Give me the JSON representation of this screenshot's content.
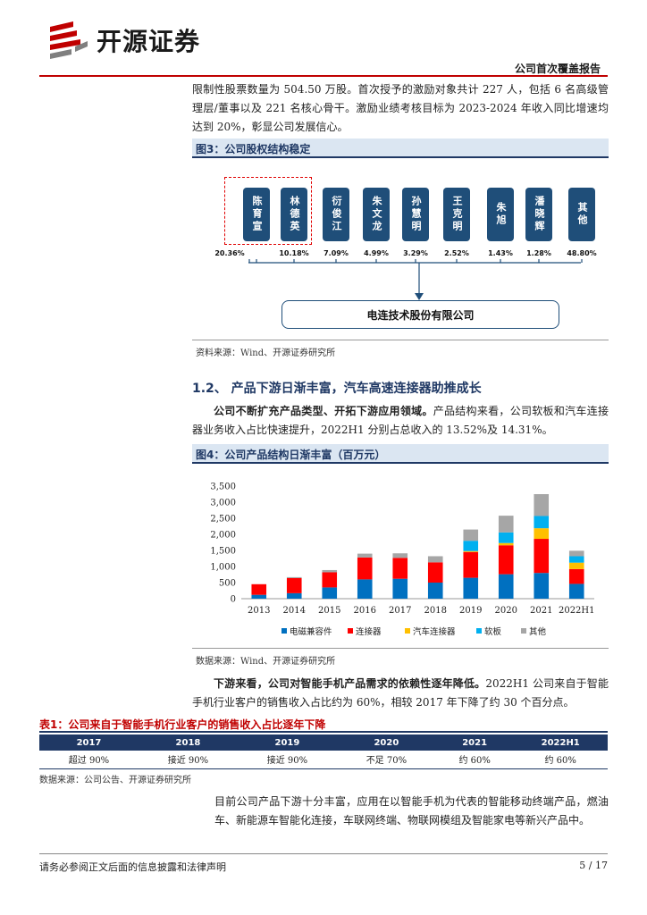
{
  "header": {
    "brand": "开源证券",
    "report_type": "公司首次覆盖报告",
    "colors": {
      "brand_red": "#c00000",
      "navy": "#1f3864"
    }
  },
  "paragraph1": "限制性股票数量为 504.50 万股。首次授予的激励对象共计 227 人，包括 6 名高级管理层/董事以及 221 名核心骨干。激励业绩考核目标为 2023-2024 年收入同比增速均达到 20%，彰显公司发展信心。",
  "figure3": {
    "title": "图3：公司股权结构稳定",
    "shareholders": [
      {
        "name": "陈育宣",
        "pct": "20.36%"
      },
      {
        "name": "林德英",
        "pct": "10.18%"
      },
      {
        "name": "衍俊江",
        "pct": "7.09%"
      },
      {
        "name": "朱文龙",
        "pct": "4.99%"
      },
      {
        "name": "孙慧明",
        "pct": "3.29%"
      },
      {
        "name": "王克明",
        "pct": "2.52%"
      },
      {
        "name": "朱旭",
        "pct": "1.43%"
      },
      {
        "name": "潘晓辉",
        "pct": "1.28%"
      },
      {
        "name": "其他",
        "pct": "48.80%"
      }
    ],
    "company": "电连技术股份有限公司",
    "source": "资料来源：Wind、开源证券研究所"
  },
  "section": {
    "title": "1.2、 产品下游日渐丰富，汽车高速连接器助推成长"
  },
  "paragraph2": {
    "bold": "公司不断扩充产品类型、开拓下游应用领域。",
    "rest": "产品结构来看，公司软板和汽车连接器业务收入占比快速提升，2022H1 分别占总收入的 13.52%及 14.31%。"
  },
  "figure4": {
    "title": "图4：公司产品结构日渐丰富（百万元）",
    "source": "数据来源：Wind、开源证券研究所"
  },
  "chart_data": {
    "type": "bar",
    "stacked": true,
    "categories": [
      "2013",
      "2014",
      "2015",
      "2016",
      "2017",
      "2018",
      "2019",
      "2020",
      "2021",
      "2022H1"
    ],
    "ylim": [
      0,
      3500
    ],
    "yticks": [
      "0",
      "500",
      "1,000",
      "1,500",
      "2,000",
      "2,500",
      "3,000",
      "3,500"
    ],
    "series": [
      {
        "name": "电磁兼容件",
        "color": "#0070c0",
        "values": [
          120,
          170,
          350,
          600,
          620,
          500,
          650,
          760,
          800,
          460
        ]
      },
      {
        "name": "连接器",
        "color": "#ff0000",
        "values": [
          330,
          470,
          470,
          680,
          650,
          630,
          800,
          900,
          1060,
          460
        ]
      },
      {
        "name": "汽车连接器",
        "color": "#ffc000",
        "values": [
          0,
          0,
          0,
          0,
          0,
          0,
          30,
          70,
          330,
          200
        ]
      },
      {
        "name": "软板",
        "color": "#00b0f0",
        "values": [
          0,
          0,
          0,
          0,
          0,
          0,
          320,
          330,
          380,
          200
        ]
      },
      {
        "name": "其他",
        "color": "#a6a6a6",
        "values": [
          0,
          30,
          70,
          120,
          140,
          190,
          350,
          520,
          680,
          170
        ]
      }
    ],
    "legend": "bottom",
    "grid": false
  },
  "paragraph3": {
    "bold": "下游来看，公司对智能手机产品需求的依赖性逐年降低。",
    "rest": "2022H1 公司来自于智能手机行业客户的销售收入占比约为 60%，相较 2017 年下降了约 30 个百分点。"
  },
  "table1": {
    "title": "表1：公司来自于智能手机行业客户的销售收入占比逐年下降",
    "headers": [
      "2017",
      "2018",
      "2019",
      "2020",
      "2021",
      "2022H1"
    ],
    "row": [
      "超过 90%",
      "接近 90%",
      "接近 90%",
      "不足 70%",
      "约 60%",
      "约 60%"
    ],
    "source": "数据来源：公司公告、开源证券研究所"
  },
  "paragraph4": "目前公司产品下游十分丰富，应用在以智能手机为代表的智能移动终端产品，燃油车、新能源车智能化连接，车联网终端、物联网模组及智能家电等新兴产品中。",
  "footer": {
    "disclaimer": "请务必参阅正文后面的信息披露和法律声明",
    "page": "5 / 17"
  }
}
